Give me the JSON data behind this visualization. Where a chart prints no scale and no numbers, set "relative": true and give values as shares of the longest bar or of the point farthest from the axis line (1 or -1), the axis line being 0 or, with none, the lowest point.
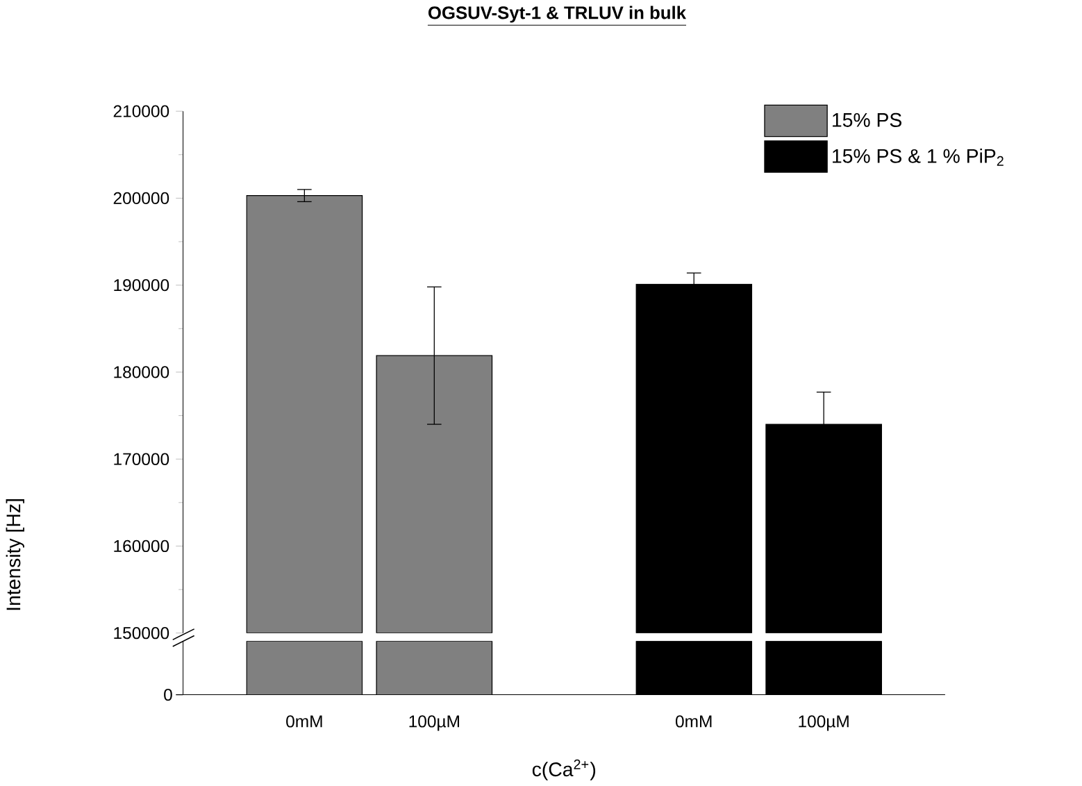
{
  "chart_data": [
    {
      "type": "bar",
      "title": "OGSUV-Syt-1 & TRLUV in bulk",
      "ylabel": "Intensity [Hz]",
      "categories": [
        "0mM",
        "100µM",
        null,
        "0mM",
        "100µM"
      ],
      "legend": "top right",
      "ylim": [
        150000,
        210000
      ],
      "yticks": [
        150000,
        160000,
        170000,
        180000,
        190000,
        200000,
        210000
      ],
      "series": [
        {
          "name": "15% PS",
          "color": "#808080",
          "values": [
            200300,
            181900,
            null,
            null,
            null
          ],
          "errors": [
            700,
            7900,
            null,
            null,
            null
          ]
        },
        {
          "name": "15% PS & 1 % PiP$_{2}$",
          "color": "#000000",
          "values": [
            null,
            null,
            null,
            190100,
            174000
          ],
          "errors": [
            null,
            null,
            null,
            1300,
            3700
          ]
        }
      ]
    },
    {
      "type": "bar",
      "xlabel": "c(Ca$^{2+}$)",
      "categories": [
        null,
        null,
        null,
        null,
        null
      ],
      "relative": true,
      "annotations": [
        "0"
      ],
      "values": [
        1,
        1,
        null,
        1,
        1
      ],
      "colors": [
        "#808080",
        "#808080",
        null,
        "#000000",
        "#000000"
      ]
    }
  ]
}
